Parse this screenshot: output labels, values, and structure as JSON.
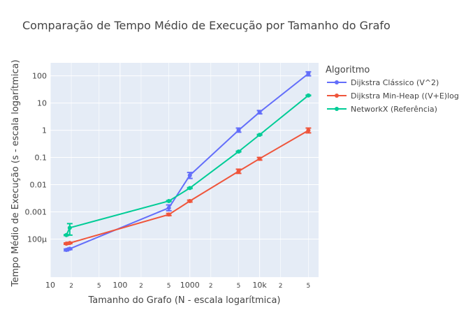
{
  "chart_data": {
    "type": "line",
    "title": "Comparação de Tempo Médio de Execução por Tamanho do Grafo",
    "xlabel": "Tamanho do Grafo (N - escala logarítmica)",
    "ylabel": "Tempo Médio de Execução (s - escala logarítmica)",
    "x_scale": "log",
    "y_scale": "log",
    "xlim": [
      10,
      70000
    ],
    "ylim": [
      4e-06,
      300
    ],
    "grid": true,
    "x_ticks": [
      {
        "value": 10,
        "label": "10",
        "major": true
      },
      {
        "value": 20,
        "label": "2",
        "major": false
      },
      {
        "value": 50,
        "label": "5",
        "major": false
      },
      {
        "value": 100,
        "label": "100",
        "major": true
      },
      {
        "value": 200,
        "label": "2",
        "major": false
      },
      {
        "value": 500,
        "label": "5",
        "major": false
      },
      {
        "value": 1000,
        "label": "1000",
        "major": true
      },
      {
        "value": 2000,
        "label": "2",
        "major": false
      },
      {
        "value": 5000,
        "label": "5",
        "major": false
      },
      {
        "value": 10000,
        "label": "10k",
        "major": true
      },
      {
        "value": 20000,
        "label": "2",
        "major": false
      },
      {
        "value": 50000,
        "label": "5",
        "major": false
      }
    ],
    "y_ticks": [
      {
        "value": 0.0001,
        "label": "100μ"
      },
      {
        "value": 0.001,
        "label": "0.001"
      },
      {
        "value": 0.01,
        "label": "0.01"
      },
      {
        "value": 0.1,
        "label": "0.1"
      },
      {
        "value": 1,
        "label": "1"
      },
      {
        "value": 10,
        "label": "10"
      },
      {
        "value": 100,
        "label": "100"
      }
    ],
    "legend": {
      "title": "Algoritmo",
      "position": "top-right"
    },
    "series": [
      {
        "name": "Dijkstra Clássico (V^2)",
        "color": "#636efa",
        "points": [
          {
            "x": 17,
            "y": 4e-05,
            "lo": 3.7e-05,
            "hi": 4.3e-05
          },
          {
            "x": 19,
            "y": 4.4e-05,
            "lo": 4.1e-05,
            "hi": 4.7e-05
          },
          {
            "x": 500,
            "y": 0.0014,
            "lo": 0.0011,
            "hi": 0.0018
          },
          {
            "x": 1000,
            "y": 0.022,
            "lo": 0.017,
            "hi": 0.028
          },
          {
            "x": 5000,
            "y": 1.0,
            "lo": 0.85,
            "hi": 1.2
          },
          {
            "x": 10000,
            "y": 4.6,
            "lo": 4.0,
            "hi": 5.3
          },
          {
            "x": 50000,
            "y": 120,
            "lo": 100,
            "hi": 140
          }
        ]
      },
      {
        "name": "Dijkstra Min-Heap ((V+E)logV)",
        "color": "#ef553b",
        "points": [
          {
            "x": 17,
            "y": 6.8e-05,
            "lo": 6.4e-05,
            "hi": 7.2e-05
          },
          {
            "x": 19,
            "y": 7.2e-05,
            "lo": 6.8e-05,
            "hi": 7.6e-05
          },
          {
            "x": 500,
            "y": 0.0008,
            "lo": 0.00073,
            "hi": 0.00088
          },
          {
            "x": 1000,
            "y": 0.0025,
            "lo": 0.0023,
            "hi": 0.0027
          },
          {
            "x": 5000,
            "y": 0.031,
            "lo": 0.026,
            "hi": 0.037
          },
          {
            "x": 10000,
            "y": 0.09,
            "lo": 0.08,
            "hi": 0.1
          },
          {
            "x": 50000,
            "y": 0.98,
            "lo": 0.8,
            "hi": 1.2
          }
        ]
      },
      {
        "name": "NetworkX (Referência)",
        "color": "#00cc96",
        "points": [
          {
            "x": 17,
            "y": 0.00014,
            "lo": 0.000135,
            "hi": 0.000145
          },
          {
            "x": 19,
            "y": 0.00026,
            "lo": 0.00014,
            "hi": 0.00037
          },
          {
            "x": 500,
            "y": 0.0025,
            "lo": 0.0024,
            "hi": 0.0026
          },
          {
            "x": 1000,
            "y": 0.0075,
            "lo": 0.0072,
            "hi": 0.0078
          },
          {
            "x": 5000,
            "y": 0.165,
            "lo": 0.16,
            "hi": 0.17
          },
          {
            "x": 10000,
            "y": 0.68,
            "lo": 0.66,
            "hi": 0.7
          },
          {
            "x": 50000,
            "y": 19,
            "lo": 18.5,
            "hi": 19.5
          }
        ]
      }
    ]
  }
}
